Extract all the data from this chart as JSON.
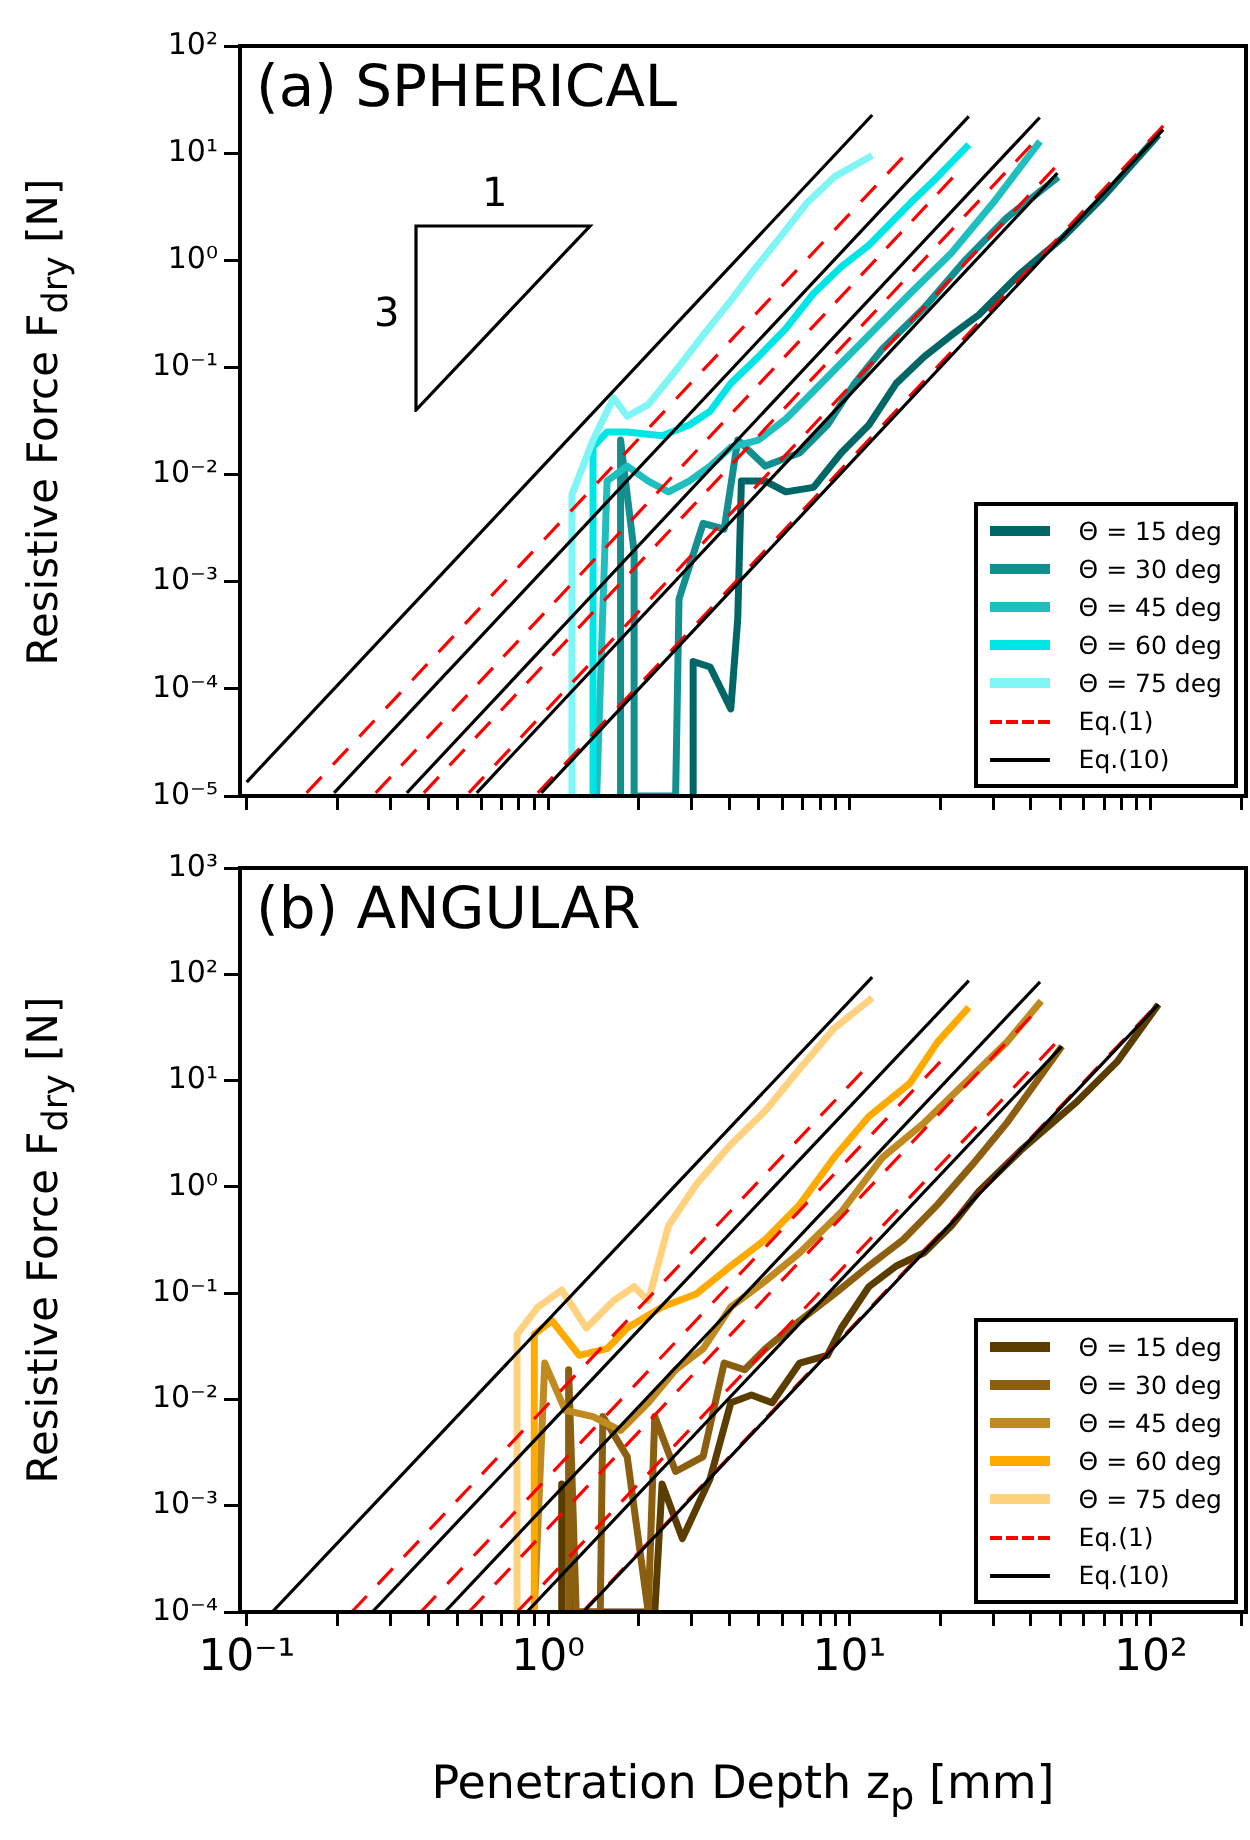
{
  "chart_data": [
    {
      "type": "line",
      "title": "(a) SPHERICAL",
      "ylabel": "Resistive Force F$_{dry}$ [N]",
      "log": "xy",
      "grid": false,
      "legend": "bottom right",
      "marker": "none",
      "tick_labels": "y",
      "annotations": [
        "1",
        "3"
      ],
      "xlim": [
        0.095,
        207
      ],
      "ylim": [
        1e-05,
        100
      ],
      "xticks": [
        {
          "value": 0.1,
          "label": null
        },
        {
          "value": 0.2,
          "label": null
        },
        {
          "value": 0.3,
          "label": null
        },
        {
          "value": 0.4,
          "label": null
        },
        {
          "value": 0.5,
          "label": null
        },
        {
          "value": 0.6,
          "label": null
        },
        {
          "value": 0.7,
          "label": null
        },
        {
          "value": 0.8,
          "label": null
        },
        {
          "value": 0.9,
          "label": null
        },
        {
          "value": 1,
          "label": null
        },
        {
          "value": 2,
          "label": null
        },
        {
          "value": 3,
          "label": null
        },
        {
          "value": 4,
          "label": null
        },
        {
          "value": 5,
          "label": null
        },
        {
          "value": 6,
          "label": null
        },
        {
          "value": 7,
          "label": null
        },
        {
          "value": 8,
          "label": null
        },
        {
          "value": 9,
          "label": null
        },
        {
          "value": 10,
          "label": null
        },
        {
          "value": 20,
          "label": null
        },
        {
          "value": 30,
          "label": null
        },
        {
          "value": 40,
          "label": null
        },
        {
          "value": 50,
          "label": null
        },
        {
          "value": 60,
          "label": null
        },
        {
          "value": 70,
          "label": null
        },
        {
          "value": 80,
          "label": null
        },
        {
          "value": 90,
          "label": null
        },
        {
          "value": 100,
          "label": null
        },
        {
          "value": 200,
          "label": null
        }
      ],
      "yticks": [
        {
          "value": 1e-05,
          "label": "10⁻⁵"
        },
        {
          "value": 0.0001,
          "label": "10⁻⁴"
        },
        {
          "value": 0.001,
          "label": "10⁻³"
        },
        {
          "value": 0.01,
          "label": "10⁻²"
        },
        {
          "value": 0.1,
          "label": "10⁻¹"
        },
        {
          "value": 1,
          "label": "10⁰"
        },
        {
          "value": 10,
          "label": "10¹"
        },
        {
          "value": 100,
          "label": "10²"
        }
      ],
      "series": [
        {
          "name": "Θ = 15 deg",
          "color": "#006666",
          "x": [
            3.03,
            3.03,
            3.45,
            4.04,
            4.26,
            4.38,
            5.26,
            6.15,
            7.6,
            9.4,
            11.6,
            14.3,
            17.7,
            21.8,
            26.9,
            37,
            50.7,
            69.5,
            106
          ],
          "values": [
            1e-05,
            0.00018,
            0.00016,
            6.5e-05,
            0.00045,
            0.0087,
            0.0087,
            0.0069,
            0.0076,
            0.016,
            0.029,
            0.071,
            0.126,
            0.2,
            0.31,
            0.76,
            1.6,
            3.9,
            14.8
          ]
        },
        {
          "name": "Θ = 30 deg",
          "color": "#138f8f",
          "x": [
            1.74,
            1.74,
            1.93,
            1.93,
            2.65,
            2.72,
            3.27,
            3.84,
            4.26,
            5.26,
            6.84,
            8.45,
            10.4,
            12.9,
            17.7,
            24.2,
            33.3,
            49.3
          ],
          "values": [
            1e-05,
            0.021,
            0.0019,
            1e-05,
            1e-05,
            0.00069,
            0.0035,
            0.0031,
            0.021,
            0.012,
            0.016,
            0.029,
            0.071,
            0.15,
            0.36,
            1,
            2.5,
            6
          ]
        },
        {
          "name": "Θ = 45 deg",
          "color": "#1fbfbf",
          "x": [
            1.45,
            1.57,
            1.83,
            2.15,
            2.51,
            2.94,
            3.45,
            4.04,
            4.99,
            6.15,
            7.6,
            9.4,
            11.6,
            15.9,
            21.8,
            29.9,
            42.9
          ],
          "values": [
            1e-05,
            0.0087,
            0.012,
            0.0087,
            0.0069,
            0.0087,
            0.012,
            0.018,
            0.021,
            0.033,
            0.06,
            0.11,
            0.2,
            0.49,
            1.17,
            3.4,
            12.9
          ]
        },
        {
          "name": "Θ = 60 deg",
          "color": "#00e6e6",
          "x": [
            1.41,
            1.41,
            1.57,
            1.83,
            2.39,
            2.94,
            3.45,
            4.04,
            4.99,
            6.15,
            7.6,
            9.4,
            11.6,
            15.9,
            19.6,
            24.9
          ],
          "values": [
            1e-05,
            0.018,
            0.025,
            0.025,
            0.023,
            0.029,
            0.039,
            0.071,
            0.126,
            0.23,
            0.49,
            0.87,
            1.38,
            3.4,
            6,
            12
          ]
        },
        {
          "name": "Θ = 75 deg",
          "color": "#80f5f5",
          "x": [
            1.2,
            1.2,
            1.41,
            1.65,
            1.83,
            2.15,
            2.65,
            3.27,
            4.04,
            4.73,
            5.85,
            7.21,
            8.91,
            11.9
          ],
          "values": [
            1e-05,
            0.0065,
            0.021,
            0.052,
            0.035,
            0.045,
            0.093,
            0.2,
            0.42,
            0.76,
            1.6,
            3.4,
            6,
            9.5
          ]
        },
        {
          "name": "Eq.(1)",
          "color": "#ff0000",
          "line_style": "dashed",
          "x": [
            0.925,
            110
          ],
          "values": [
            1.07e-05,
            18
          ]
        },
        {
          "color": "#ff0000",
          "line_style": "dashed",
          "x": [
            0.546,
            48
          ],
          "values": [
            1.07e-05,
            7.3
          ]
        },
        {
          "color": "#ff0000",
          "line_style": "dashed",
          "x": [
            0.387,
            40
          ],
          "values": [
            1.07e-05,
            11.8
          ]
        },
        {
          "color": "#ff0000",
          "line_style": "dashed",
          "x": [
            0.268,
            22
          ],
          "values": [
            1.07e-05,
            5.9
          ]
        },
        {
          "color": "#ff0000",
          "line_style": "dashed",
          "x": [
            0.158,
            15
          ],
          "values": [
            1.07e-05,
            9.1
          ]
        },
        {
          "name": "Eq.(10)",
          "color": "#000000",
          "line_style": "solid",
          "x": [
            0.95,
            110
          ],
          "values": [
            1.07e-05,
            16.6
          ]
        },
        {
          "color": "#000000",
          "line_style": "solid",
          "x": [
            0.58,
            49
          ],
          "values": [
            1.07e-05,
            6.5
          ]
        },
        {
          "color": "#000000",
          "line_style": "solid",
          "x": [
            0.34,
            42.8
          ],
          "values": [
            1.07e-05,
            21.5
          ]
        },
        {
          "color": "#000000",
          "line_style": "solid",
          "x": [
            0.195,
            24.9
          ],
          "values": [
            1.07e-05,
            22
          ]
        },
        {
          "color": "#000000",
          "line_style": "solid",
          "x": [
            0.1,
            11.9
          ],
          "values": [
            1.35e-05,
            22.7
          ]
        }
      ]
    },
    {
      "type": "line",
      "title": "(b) ANGULAR",
      "xlabel": "Penetration Depth z$_{p}$ [mm]",
      "ylabel": "Resistive Force F$_{dry}$ [N]",
      "log": "xy",
      "grid": false,
      "legend": "bottom right",
      "marker": "none",
      "xlim": [
        0.095,
        207
      ],
      "ylim": [
        0.0001,
        1000
      ],
      "xticks": [
        {
          "value": 0.1,
          "label": "10⁻¹"
        },
        {
          "value": 0.2,
          "label": null
        },
        {
          "value": 0.3,
          "label": null
        },
        {
          "value": 0.4,
          "label": null
        },
        {
          "value": 0.5,
          "label": null
        },
        {
          "value": 0.6,
          "label": null
        },
        {
          "value": 0.7,
          "label": null
        },
        {
          "value": 0.8,
          "label": null
        },
        {
          "value": 0.9,
          "label": null
        },
        {
          "value": 1,
          "label": "10⁰"
        },
        {
          "value": 2,
          "label": null
        },
        {
          "value": 3,
          "label": null
        },
        {
          "value": 4,
          "label": null
        },
        {
          "value": 5,
          "label": null
        },
        {
          "value": 6,
          "label": null
        },
        {
          "value": 7,
          "label": null
        },
        {
          "value": 8,
          "label": null
        },
        {
          "value": 9,
          "label": null
        },
        {
          "value": 10,
          "label": "10¹"
        },
        {
          "value": 20,
          "label": null
        },
        {
          "value": 30,
          "label": null
        },
        {
          "value": 40,
          "label": null
        },
        {
          "value": 50,
          "label": null
        },
        {
          "value": 60,
          "label": null
        },
        {
          "value": 70,
          "label": null
        },
        {
          "value": 80,
          "label": null
        },
        {
          "value": 90,
          "label": null
        },
        {
          "value": 100,
          "label": "10²"
        },
        {
          "value": 200,
          "label": null
        }
      ],
      "yticks": [
        {
          "value": 0.0001,
          "label": "10⁻⁴"
        },
        {
          "value": 0.001,
          "label": "10⁻³"
        },
        {
          "value": 0.01,
          "label": "10⁻²"
        },
        {
          "value": 0.1,
          "label": "10⁻¹"
        },
        {
          "value": 1,
          "label": "10⁰"
        },
        {
          "value": 10,
          "label": "10¹"
        },
        {
          "value": 100,
          "label": "10²"
        },
        {
          "value": 1000,
          "label": "10³"
        }
      ],
      "series": [
        {
          "name": "Θ = 15 deg",
          "color": "#5c3d00",
          "x": [
            1.11,
            1.11,
            1.2,
            2.26,
            2.39,
            2.79,
            3.45,
            4.04,
            4.73,
            5.54,
            6.84,
            8.45,
            9.4,
            11.6,
            14.3,
            17.7,
            21.8,
            26.9,
            37,
            56.4,
            77.3,
            106
          ],
          "values": [
            0.0001,
            0.0016,
            0.0001,
            0.0001,
            0.0016,
            0.00049,
            0.0018,
            0.0093,
            0.011,
            0.0093,
            0.022,
            0.026,
            0.047,
            0.115,
            0.18,
            0.24,
            0.43,
            0.91,
            2.2,
            6.2,
            15,
            52
          ]
        },
        {
          "name": "Θ = 30 deg",
          "color": "#8c5e10",
          "x": [
            1.17,
            1.17,
            1.24,
            1.49,
            1.52,
            1.83,
            2.15,
            2.26,
            2.65,
            3.27,
            3.84,
            4.49,
            5.26,
            6.84,
            8.91,
            11.6,
            15.1,
            19.6,
            25.5,
            33.3,
            50.7
          ],
          "values": [
            0.0001,
            0.019,
            0.0001,
            0.0001,
            0.0069,
            0.0029,
            0.0001,
            0.0069,
            0.0021,
            0.0029,
            0.022,
            0.019,
            0.03,
            0.055,
            0.098,
            0.18,
            0.32,
            0.68,
            1.6,
            4,
            21
          ]
        },
        {
          "name": "Θ = 45 deg",
          "color": "#c08a20",
          "x": [
            0.9,
            0.975,
            1.14,
            1.41,
            1.74,
            2.15,
            2.65,
            3.27,
            4.04,
            5.26,
            6.84,
            9.4,
            12.9,
            17.7,
            25.5,
            33.3,
            43.3
          ],
          "values": [
            0.0001,
            0.022,
            0.0079,
            0.0069,
            0.0051,
            0.0093,
            0.019,
            0.03,
            0.074,
            0.13,
            0.24,
            0.58,
            1.9,
            4,
            11,
            23,
            56
          ]
        },
        {
          "name": "Θ = 60 deg",
          "color": "#ffaa00",
          "x": [
            0.9,
            0.9,
            1.03,
            1.27,
            1.57,
            1.83,
            2.39,
            3.1,
            4.04,
            5.26,
            6.84,
            8.91,
            11.6,
            15.9,
            19.6,
            24.9
          ],
          "values": [
            0.0001,
            0.041,
            0.055,
            0.026,
            0.03,
            0.047,
            0.074,
            0.098,
            0.18,
            0.32,
            0.68,
            1.9,
            4.6,
            9.5,
            23,
            49
          ]
        },
        {
          "name": "Θ = 75 deg",
          "color": "#ffd280",
          "x": [
            0.789,
            0.789,
            0.925,
            1.11,
            1.34,
            1.65,
            1.93,
            2.15,
            2.51,
            3.1,
            4.04,
            5.26,
            6.84,
            8.91,
            11.9
          ],
          "values": [
            0.0001,
            0.041,
            0.074,
            0.107,
            0.047,
            0.085,
            0.115,
            0.085,
            0.43,
            1.05,
            2.5,
            5.2,
            12.9,
            31,
            60
          ]
        },
        {
          "name": "Eq.(1)",
          "color": "#ff0000",
          "line_style": "dashed",
          "x": [
            1.3,
            100
          ],
          "values": [
            0.0001,
            45
          ]
        },
        {
          "color": "#ff0000",
          "line_style": "dashed",
          "x": [
            0.789,
            48
          ],
          "values": [
            0.0001,
            22
          ]
        },
        {
          "color": "#ff0000",
          "line_style": "dashed",
          "x": [
            0.546,
            40
          ],
          "values": [
            0.0001,
            40
          ]
        },
        {
          "color": "#ff0000",
          "line_style": "dashed",
          "x": [
            0.378,
            20
          ],
          "values": [
            0.0001,
            15
          ]
        },
        {
          "color": "#ff0000",
          "line_style": "dashed",
          "x": [
            0.223,
            11
          ],
          "values": [
            0.0001,
            12
          ]
        },
        {
          "name": "Eq.(10)",
          "color": "#000000",
          "line_style": "solid",
          "x": [
            1.31,
            106
          ],
          "values": [
            0.0001,
            52
          ]
        },
        {
          "color": "#000000",
          "line_style": "solid",
          "x": [
            0.85,
            50.7
          ],
          "values": [
            0.0001,
            21
          ]
        },
        {
          "color": "#000000",
          "line_style": "solid",
          "x": [
            0.454,
            42.9
          ],
          "values": [
            0.0001,
            85
          ]
        },
        {
          "color": "#000000",
          "line_style": "solid",
          "x": [
            0.261,
            24.9
          ],
          "values": [
            0.0001,
            87
          ]
        },
        {
          "color": "#000000",
          "line_style": "solid",
          "x": [
            0.1215,
            11.9
          ],
          "values": [
            0.0001,
            94
          ]
        }
      ]
    }
  ]
}
